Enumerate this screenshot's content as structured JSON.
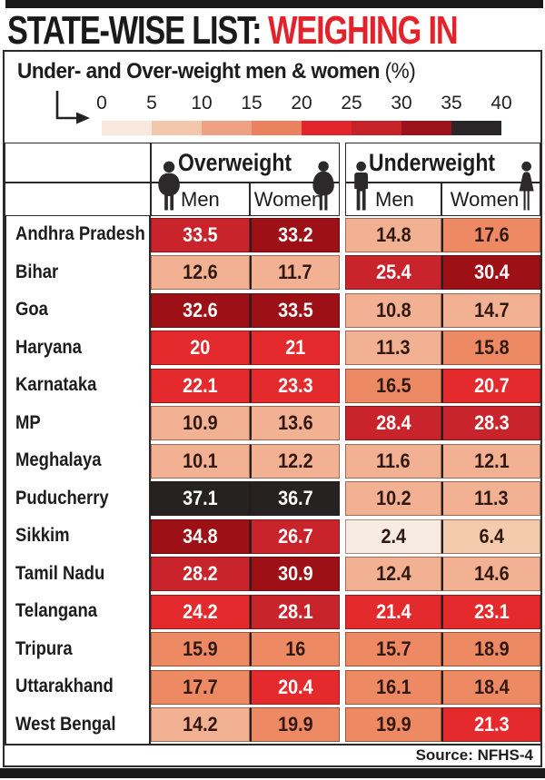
{
  "title": {
    "black_part": "STATE-WISE LIST:",
    "red_part": "WEIGHING IN",
    "red_color": "#e2232b"
  },
  "subtitle": {
    "main": "Under- and Over-weight men & women",
    "suffix": "(%)"
  },
  "legend": {
    "ticks": [
      "0",
      "5",
      "10",
      "15",
      "20",
      "25",
      "30",
      "35",
      "40"
    ],
    "colors": [
      "#f9e9dc",
      "#f3c7ab",
      "#efa283",
      "#ea8260",
      "#e2252b",
      "#c32329",
      "#9d111b",
      "#2a2526"
    ]
  },
  "header": {
    "group_overweight": "Overweight",
    "group_underweight": "Underweight",
    "men_label": "Men",
    "women_label": "Women",
    "icons": [
      "overweight-man-icon",
      "overweight-woman-icon",
      "underweight-man-icon",
      "underweight-woman-icon"
    ]
  },
  "palette": [
    "#f8ece2",
    "#f5cbae",
    "#f3b193",
    "#ed8a63",
    "#e42a2c",
    "#c9242b",
    "#9c1016",
    "#272222"
  ],
  "chart_data": {
    "type": "heatmap",
    "title": "Under- and Over-weight men & women (%)",
    "columns": [
      "Overweight Men",
      "Overweight Women",
      "Underweight Men",
      "Underweight Women"
    ],
    "scale": {
      "min": 0,
      "max": 40,
      "step": 5
    },
    "rows": [
      {
        "state": "Andhra Pradesh",
        "values": [
          33.5,
          33.2,
          14.8,
          17.6
        ],
        "buckets": [
          5,
          6,
          2,
          3
        ]
      },
      {
        "state": "Bihar",
        "values": [
          12.6,
          11.7,
          25.4,
          30.4
        ],
        "buckets": [
          2,
          2,
          5,
          6
        ]
      },
      {
        "state": "Goa",
        "values": [
          32.6,
          33.5,
          10.8,
          14.7
        ],
        "buckets": [
          6,
          6,
          2,
          2
        ]
      },
      {
        "state": "Haryana",
        "values": [
          20,
          21,
          11.3,
          15.8
        ],
        "buckets": [
          4,
          4,
          2,
          3
        ]
      },
      {
        "state": "Karnataka",
        "values": [
          22.1,
          23.3,
          16.5,
          20.7
        ],
        "buckets": [
          4,
          4,
          3,
          4
        ]
      },
      {
        "state": "MP",
        "values": [
          10.9,
          13.6,
          28.4,
          28.3
        ],
        "buckets": [
          2,
          2,
          5,
          5
        ]
      },
      {
        "state": "Meghalaya",
        "values": [
          10.1,
          12.2,
          11.6,
          12.1
        ],
        "buckets": [
          2,
          2,
          2,
          2
        ]
      },
      {
        "state": "Puducherry",
        "values": [
          37.1,
          36.7,
          10.2,
          11.3
        ],
        "buckets": [
          7,
          7,
          2,
          2
        ]
      },
      {
        "state": "Sikkim",
        "values": [
          34.8,
          26.7,
          2.4,
          6.4
        ],
        "buckets": [
          6,
          5,
          0,
          1
        ]
      },
      {
        "state": "Tamil Nadu",
        "values": [
          28.2,
          30.9,
          12.4,
          14.6
        ],
        "buckets": [
          5,
          6,
          2,
          2
        ]
      },
      {
        "state": "Telangana",
        "values": [
          24.2,
          28.1,
          21.4,
          23.1
        ],
        "buckets": [
          4,
          5,
          4,
          4
        ]
      },
      {
        "state": "Tripura",
        "values": [
          15.9,
          16,
          15.7,
          18.9
        ],
        "buckets": [
          3,
          3,
          3,
          3
        ]
      },
      {
        "state": "Uttarakhand",
        "values": [
          17.7,
          20.4,
          16.1,
          18.4
        ],
        "buckets": [
          3,
          4,
          3,
          3
        ]
      },
      {
        "state": "West Bengal",
        "values": [
          14.2,
          19.9,
          19.9,
          21.3
        ],
        "buckets": [
          2,
          3,
          3,
          4
        ]
      }
    ]
  },
  "footer": {
    "source": "Source: NFHS-4"
  }
}
